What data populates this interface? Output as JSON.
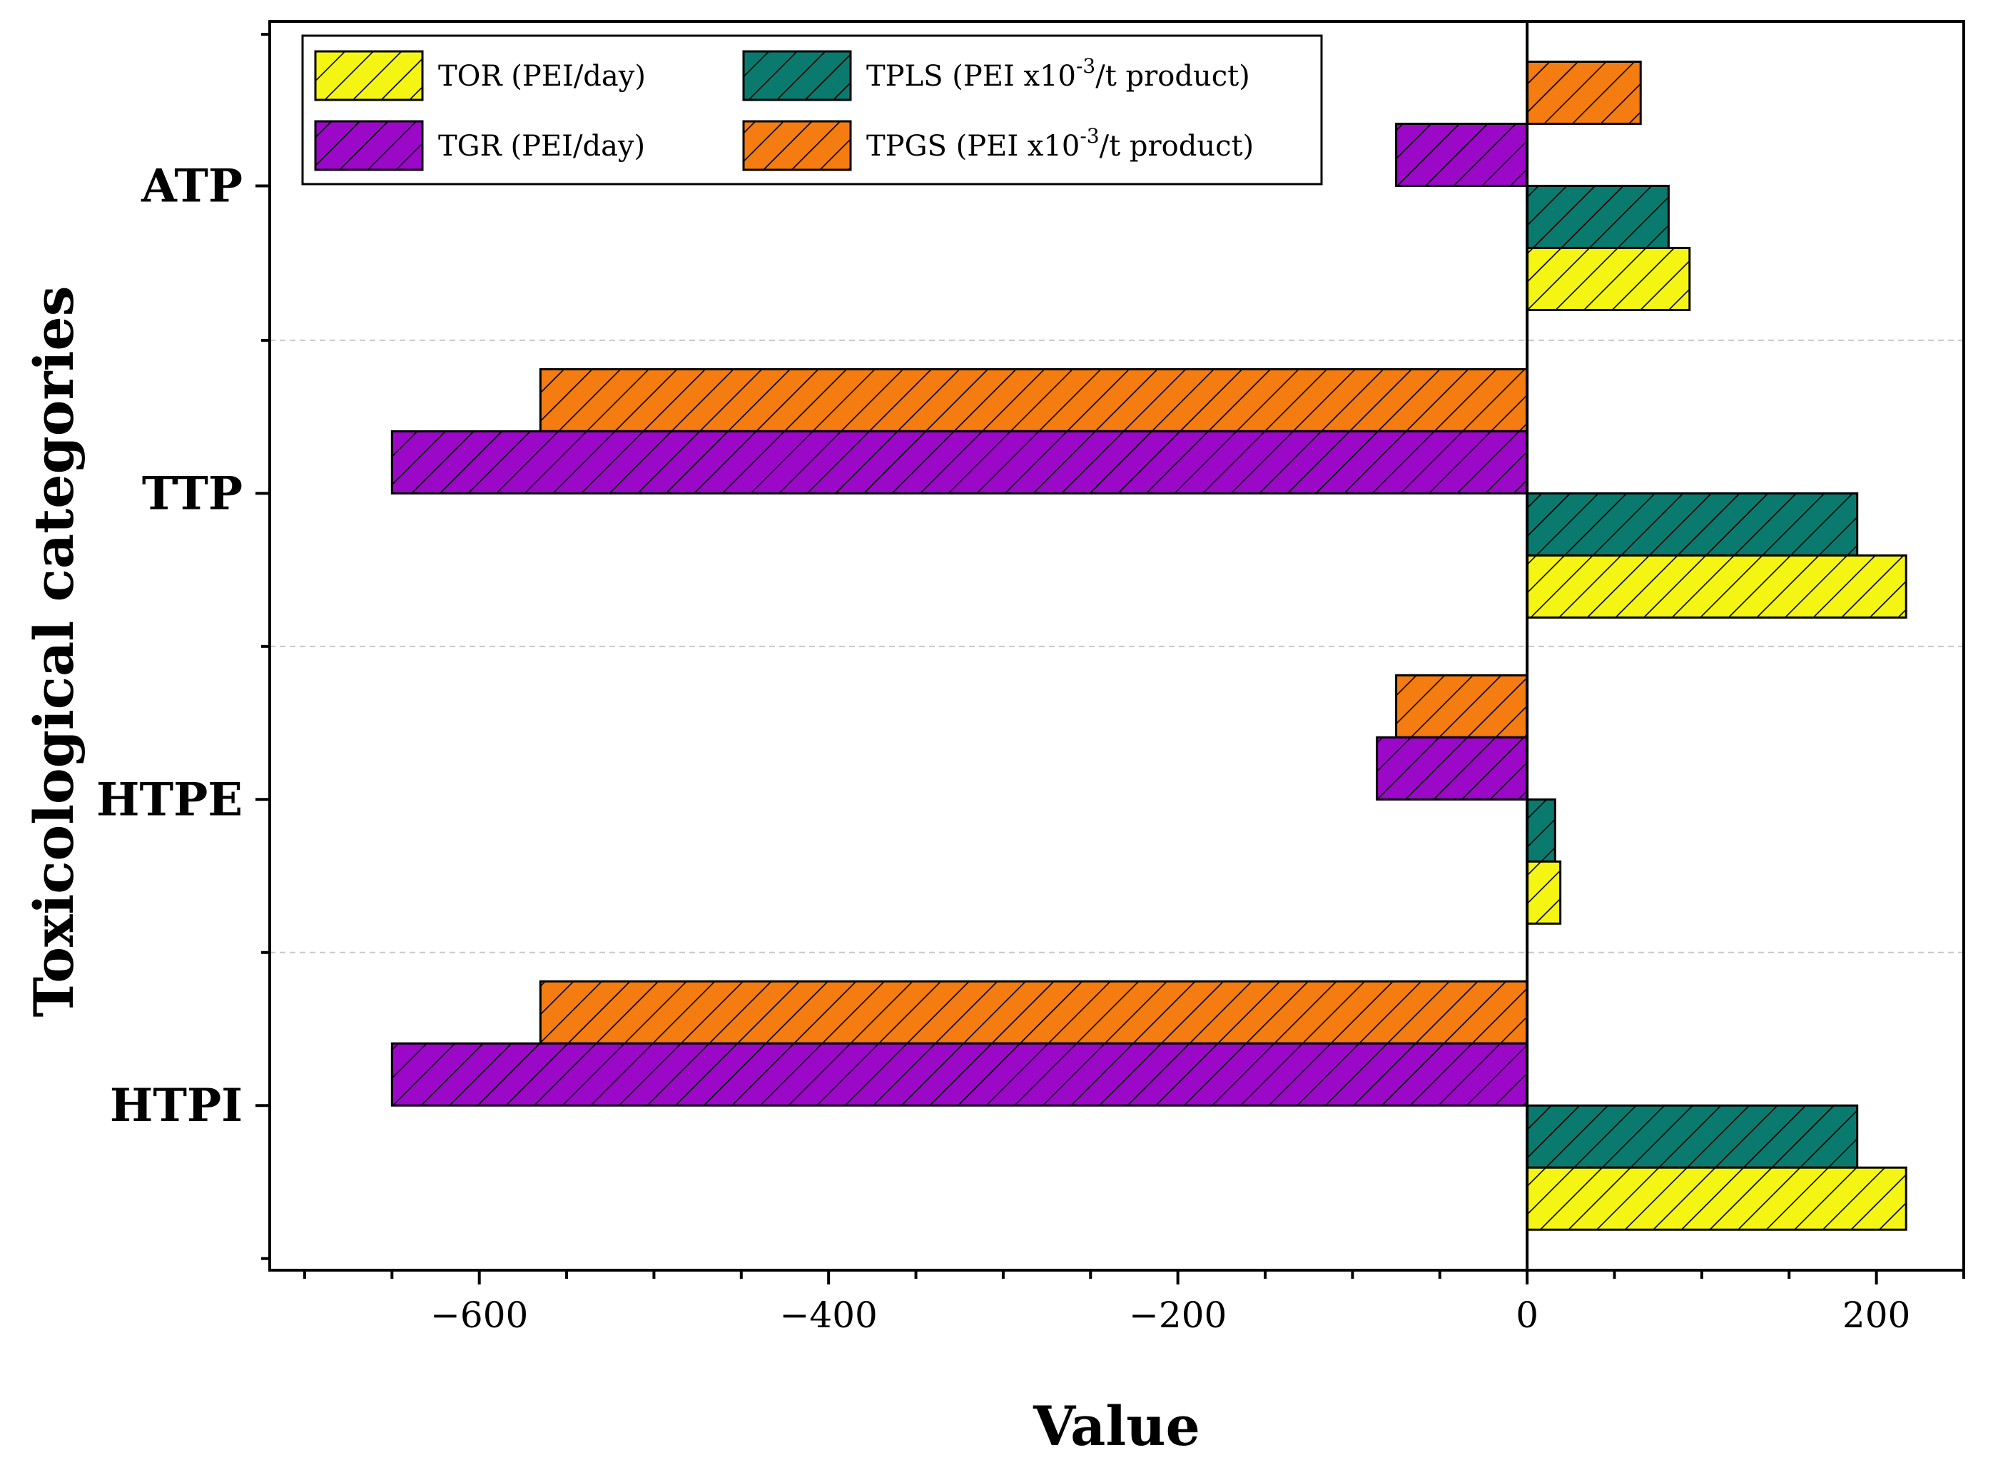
{
  "chart_data": {
    "type": "bar",
    "orientation": "horizontal",
    "title": "",
    "xlabel": "Value",
    "ylabel": "Toxicological categories",
    "xlim": [
      -720,
      250
    ],
    "xticks": [
      -600,
      -400,
      -200,
      0,
      200
    ],
    "xtick_labels": [
      "−600",
      "−400",
      "−200",
      "0",
      "200"
    ],
    "categories": [
      "ATP",
      "TTP",
      "HTPE",
      "HTPI"
    ],
    "legend_position": "top-left",
    "grid": "dashed horizontal separators between categories",
    "series": [
      {
        "name": "TOR (PEI/day)",
        "color": "#f5f514",
        "hatch": "diagonal",
        "values": [
          93,
          217,
          19,
          217
        ]
      },
      {
        "name": "TPLS (PEI x10-3/t product)",
        "label_main": "TPLS (PEI x10",
        "label_sup": "-3",
        "label_tail": "/t product)",
        "color": "#0a7a6e",
        "hatch": "diagonal",
        "values": [
          81,
          189,
          16,
          189
        ]
      },
      {
        "name": "TGR (PEI/day)",
        "color": "#9b08c8",
        "hatch": "diagonal",
        "values": [
          -75,
          -650,
          -86,
          -650
        ]
      },
      {
        "name": "TPGS (PEI x10-3/t product)",
        "label_main": "TPGS (PEI x10",
        "label_sup": "-3",
        "label_tail": "/t product)",
        "color": "#f47c10",
        "hatch": "diagonal",
        "values": [
          65,
          -565,
          -75,
          -565
        ]
      }
    ]
  }
}
